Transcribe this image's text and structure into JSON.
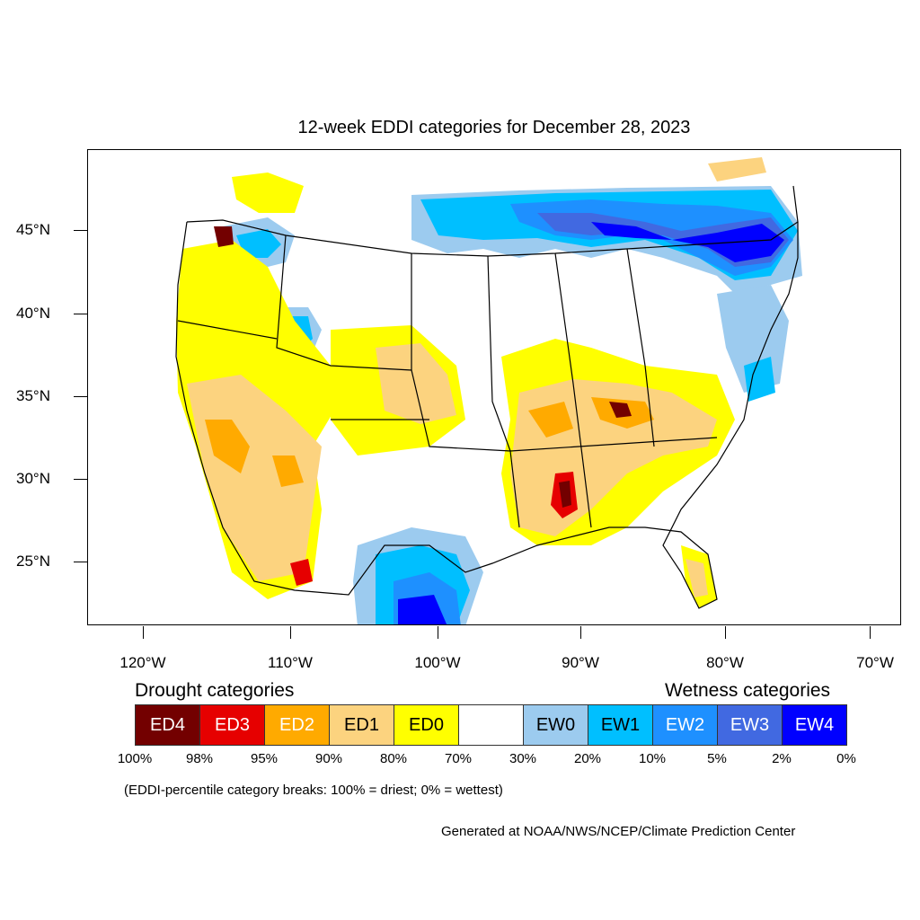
{
  "title": "12-week EDDI categories for December 28, 2023",
  "lat_labels": [
    "45°N",
    "40°N",
    "35°N",
    "30°N",
    "25°N"
  ],
  "lon_labels": [
    "120°W",
    "110°W",
    "100°W",
    "90°W",
    "80°W",
    "70°W"
  ],
  "legend": {
    "drought_heading": "Drought categories",
    "wetness_heading": "Wetness categories",
    "categories": [
      {
        "label": "ED4",
        "color": "#730000",
        "text_color": "#ffffff"
      },
      {
        "label": "ED3",
        "color": "#e60000",
        "text_color": "#ffffff"
      },
      {
        "label": "ED2",
        "color": "#ffaa00",
        "text_color": "#ffffff"
      },
      {
        "label": "ED1",
        "color": "#fcd37f",
        "text_color": "#000000"
      },
      {
        "label": "ED0",
        "color": "#ffff00",
        "text_color": "#000000"
      },
      {
        "label": "",
        "color": "#ffffff",
        "text_color": "#000000"
      },
      {
        "label": "EW0",
        "color": "#9ccbef",
        "text_color": "#000000"
      },
      {
        "label": "EW1",
        "color": "#00bfff",
        "text_color": "#000000"
      },
      {
        "label": "EW2",
        "color": "#1e90ff",
        "text_color": "#ffffff"
      },
      {
        "label": "EW3",
        "color": "#4169e1",
        "text_color": "#ffffff"
      },
      {
        "label": "EW4",
        "color": "#0000ff",
        "text_color": "#ffffff"
      }
    ],
    "breaks": [
      "100%",
      "98%",
      "95%",
      "90%",
      "80%",
      "70%",
      "30%",
      "20%",
      "10%",
      "5%",
      "2%",
      "0%"
    ]
  },
  "note": "(EDDI-percentile category breaks: 100% = driest; 0% = wettest)",
  "credit": "Generated at NOAA/NWS/NCEP/Climate Prediction Center"
}
